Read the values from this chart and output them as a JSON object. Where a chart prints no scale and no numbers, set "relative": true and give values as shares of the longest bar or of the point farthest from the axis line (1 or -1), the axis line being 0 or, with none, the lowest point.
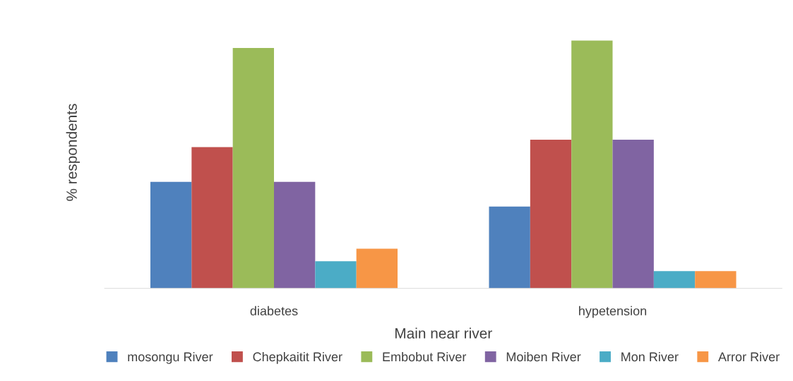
{
  "chart_data": {
    "type": "bar",
    "relative": true,
    "xlabel": "Main near river",
    "ylabel": "% respondents",
    "categories": [
      "diabetes",
      "hypetension"
    ],
    "series": [
      {
        "name": "mosongu River",
        "color": "#4f81bd",
        "values": [
          0.43,
          0.33
        ]
      },
      {
        "name": "Chepkaitit River",
        "color": "#c0504d",
        "values": [
          0.57,
          0.6
        ]
      },
      {
        "name": "Embobut River",
        "color": "#9bbb59",
        "values": [
          0.97,
          1
        ]
      },
      {
        "name": "Moiben River",
        "color": "#8064a2",
        "values": [
          0.43,
          0.6
        ]
      },
      {
        "name": "Mon River",
        "color": "#4bacc6",
        "values": [
          0.11,
          0.07
        ]
      },
      {
        "name": "Arror River",
        "color": "#f79646",
        "values": [
          0.16,
          0.07
        ]
      }
    ],
    "legend": "bottom",
    "grid": false
  }
}
